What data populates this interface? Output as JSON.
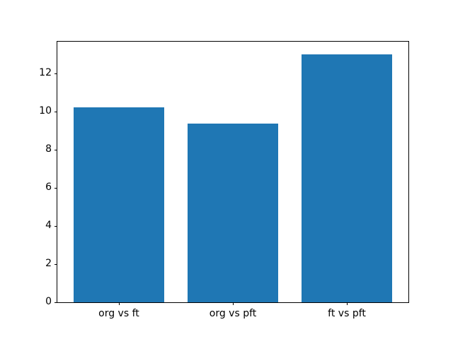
{
  "figure": {
    "background_color": "#ffffff",
    "axis_color": "#000000",
    "bar_color": "#1f77b4",
    "title": ""
  },
  "chart_data": {
    "type": "bar",
    "categories": [
      "org vs ft",
      "org vs pft",
      "ft vs pft"
    ],
    "values": [
      10.2,
      9.35,
      13.0
    ],
    "title": "",
    "xlabel": "",
    "ylabel": "",
    "ylim": [
      0,
      13.65
    ],
    "yticks": [
      0,
      2,
      4,
      6,
      8,
      10,
      12
    ],
    "ytick_labels": [
      "0",
      "2",
      "4",
      "6",
      "8",
      "10",
      "12"
    ],
    "bar_width_fraction": 0.8,
    "x_margin_fraction": 0.05,
    "grid": false,
    "legend": null
  }
}
